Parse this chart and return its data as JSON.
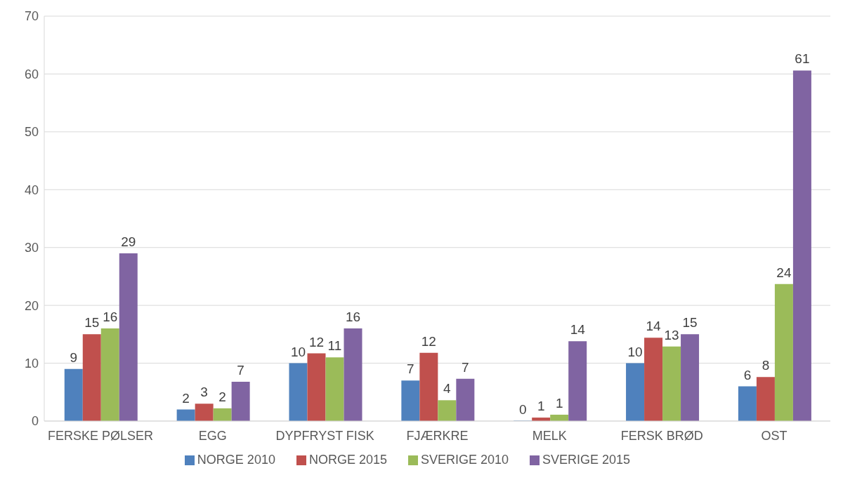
{
  "chart_data": {
    "type": "bar",
    "categories": [
      "FERSKE PØLSER",
      "EGG",
      "DYPFRYST FISK",
      "FJÆRKRE",
      "MELK",
      "FERSK BRØD",
      "OST"
    ],
    "series": [
      {
        "name": "NORGE 2010",
        "color": "#4f81bd",
        "values": [
          9,
          2,
          10,
          7,
          0,
          10,
          6
        ],
        "value_labels": [
          "9",
          "2",
          "10",
          "7",
          "0",
          "10",
          "6"
        ]
      },
      {
        "name": "NORGE 2015",
        "color": "#c0504d",
        "values": [
          15,
          3,
          11.7,
          11.8,
          0.6,
          14.4,
          7.6
        ],
        "value_labels": [
          "15",
          "3",
          "12",
          "12",
          "1",
          "14",
          "8"
        ]
      },
      {
        "name": "SVERIGE 2010",
        "color": "#9bbb59",
        "values": [
          16,
          2.2,
          11,
          3.6,
          1.1,
          12.9,
          23.7
        ],
        "value_labels": [
          "16",
          "2",
          "11",
          "4",
          "1",
          "13",
          "24"
        ]
      },
      {
        "name": "SVERIGE 2015",
        "color": "#8064a2",
        "values": [
          29,
          6.8,
          16,
          7.3,
          13.8,
          15,
          60.6
        ],
        "value_labels": [
          "29",
          "7",
          "16",
          "7",
          "14",
          "15",
          "61"
        ]
      }
    ],
    "ylim": [
      0,
      70
    ],
    "yticks": [
      0,
      10,
      20,
      30,
      40,
      50,
      60,
      70
    ],
    "grid": "y",
    "legend": "bottom"
  }
}
